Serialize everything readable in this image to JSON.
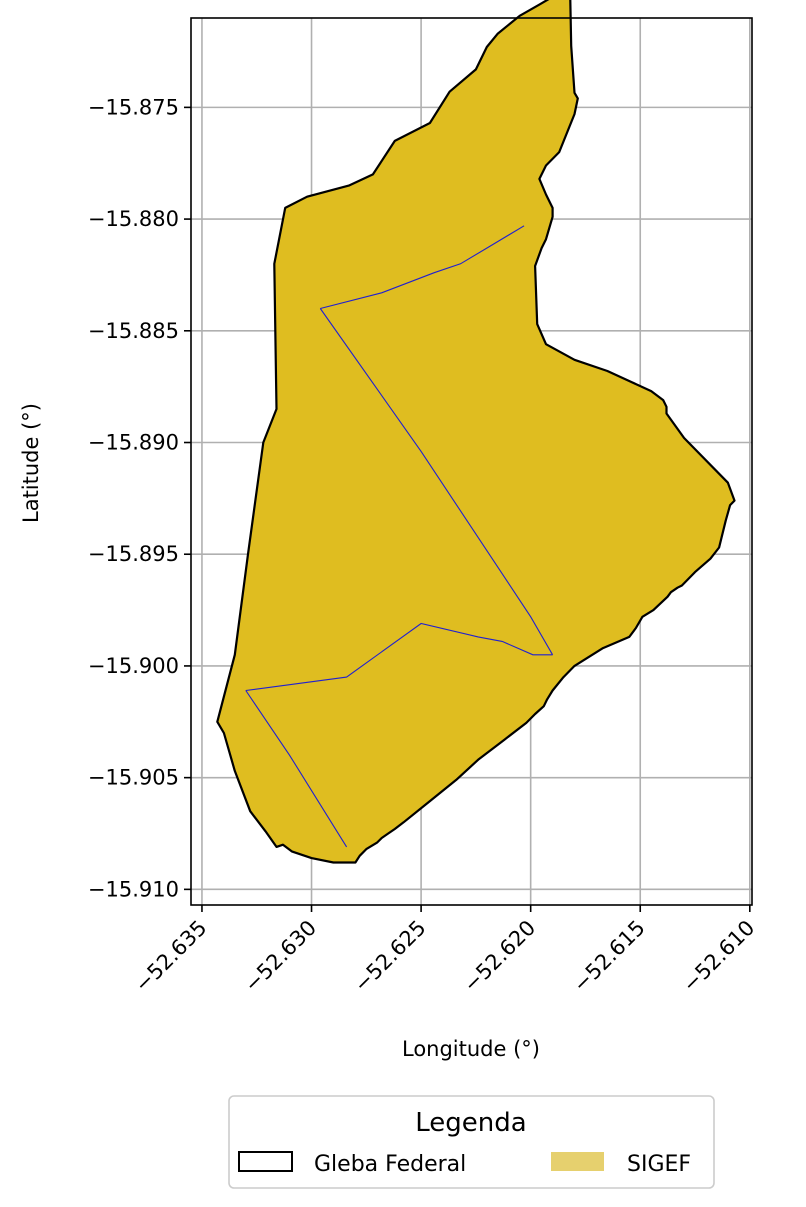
{
  "chart_data": {
    "type": "map",
    "xlabel": "Longitude (°)",
    "ylabel": "Latitude (°)",
    "x_ticks": [
      -52.635,
      -52.63,
      -52.625,
      -52.62,
      -52.615,
      -52.61
    ],
    "x_tick_labels": [
      "−52.635",
      "−52.630",
      "−52.625",
      "−52.620",
      "−52.615",
      "−52.610"
    ],
    "y_ticks": [
      -15.875,
      -15.88,
      -15.885,
      -15.89,
      -15.895,
      -15.9,
      -15.905,
      -15.91
    ],
    "y_tick_labels": [
      "−15.875",
      "−15.880",
      "−15.885",
      "−15.890",
      "−15.895",
      "−15.900",
      "−15.905",
      "−15.910"
    ],
    "xlim": [
      -52.6355,
      -52.6099
    ],
    "ylim": [
      -15.9107,
      -15.871
    ],
    "grid": true,
    "legend": {
      "title": "Legenda",
      "placement": "bottom-center, below axes",
      "entries": [
        {
          "label": "Gleba Federal",
          "style": "outline",
          "edge_color": "#000000"
        },
        {
          "label": "SIGEF",
          "style": "filled",
          "fill_color": "#e6d06e"
        }
      ]
    },
    "colors": {
      "fill": "#dfbd20",
      "outline": "#000000",
      "parcel_lines": "#2020d0",
      "grid": "#b0b0b0"
    },
    "boundary_polygon": [
      [
        -52.61815,
        -15.87225
      ],
      [
        -52.618,
        -15.87435
      ],
      [
        -52.61785,
        -15.8746
      ],
      [
        -52.618,
        -15.8753
      ],
      [
        -52.6187,
        -15.877
      ],
      [
        -52.6193,
        -15.8776
      ],
      [
        -52.6196,
        -15.8782
      ],
      [
        -52.6193,
        -15.8789
      ],
      [
        -52.619,
        -15.8795
      ],
      [
        -52.619,
        -15.8799
      ],
      [
        -52.6193,
        -15.8809
      ],
      [
        -52.6195,
        -15.8813
      ],
      [
        -52.6198,
        -15.8821
      ],
      [
        -52.6197,
        -15.8847
      ],
      [
        -52.6193,
        -15.8856
      ],
      [
        -52.618,
        -15.8863
      ],
      [
        -52.6165,
        -15.8868
      ],
      [
        -52.6145,
        -15.8877
      ],
      [
        -52.61395,
        -15.8881
      ],
      [
        -52.6138,
        -15.8884
      ],
      [
        -52.6138,
        -15.8887
      ],
      [
        -52.613,
        -15.8898
      ],
      [
        -52.611,
        -15.8918
      ],
      [
        -52.6107,
        -15.8926
      ],
      [
        -52.6109,
        -15.8928
      ],
      [
        -52.6111,
        -15.8935
      ],
      [
        -52.6114,
        -15.8947
      ],
      [
        -52.6118,
        -15.8952
      ],
      [
        -52.6125,
        -15.8958
      ],
      [
        -52.6131,
        -15.8964
      ],
      [
        -52.6133,
        -15.8965
      ],
      [
        -52.6136,
        -15.8967
      ],
      [
        -52.61375,
        -15.8969
      ],
      [
        -52.6144,
        -15.8975
      ],
      [
        -52.6149,
        -15.8978
      ],
      [
        -52.6152,
        -15.8983
      ],
      [
        -52.6155,
        -15.8987
      ],
      [
        -52.6167,
        -15.8992
      ],
      [
        -52.618,
        -15.9
      ],
      [
        -52.6185,
        -15.9005
      ],
      [
        -52.619,
        -15.9011
      ],
      [
        -52.61925,
        -15.9015
      ],
      [
        -52.6194,
        -15.9018
      ],
      [
        -52.6198,
        -15.90215
      ],
      [
        -52.6202,
        -15.90255
      ],
      [
        -52.6212,
        -15.9033
      ],
      [
        -52.6224,
        -15.9042
      ],
      [
        -52.6234,
        -15.9051
      ],
      [
        -52.6246,
        -15.90605
      ],
      [
        -52.6258,
        -15.907
      ],
      [
        -52.6262,
        -15.9073
      ],
      [
        -52.6265,
        -15.9075
      ],
      [
        -52.6268,
        -15.9077
      ],
      [
        -52.627,
        -15.9079
      ],
      [
        -52.6275,
        -15.9082
      ],
      [
        -52.6278,
        -15.9085
      ],
      [
        -52.628,
        -15.9088
      ],
      [
        -52.6283,
        -15.9088
      ],
      [
        -52.629,
        -15.9088
      ],
      [
        -52.63,
        -15.9086
      ],
      [
        -52.6309,
        -15.9083
      ],
      [
        -52.6313,
        -15.908
      ],
      [
        -52.6316,
        -15.9081
      ],
      [
        -52.6321,
        -15.9074
      ],
      [
        -52.6328,
        -15.9065
      ],
      [
        -52.6335,
        -15.9047
      ],
      [
        -52.634,
        -15.903
      ],
      [
        -52.6343,
        -15.9025
      ],
      [
        -52.6335,
        -15.8995
      ],
      [
        -52.6329,
        -15.895
      ],
      [
        -52.6322,
        -15.89
      ],
      [
        -52.6316,
        -15.8885
      ],
      [
        -52.6317,
        -15.882
      ],
      [
        -52.6312,
        -15.8795
      ],
      [
        -52.6302,
        -15.879
      ],
      [
        -52.6283,
        -15.8785
      ],
      [
        -52.6272,
        -15.878
      ],
      [
        -52.6262,
        -15.8765
      ],
      [
        -52.6246,
        -15.8757
      ],
      [
        -52.6237,
        -15.8743
      ],
      [
        -52.6225,
        -15.8733
      ],
      [
        -52.622,
        -15.8723
      ],
      [
        -52.6215,
        -15.8717
      ],
      [
        -52.6205,
        -15.8709
      ],
      [
        -52.6196,
        -15.8704
      ],
      [
        -52.619,
        -15.87005
      ],
      [
        -52.6185,
        -15.8698
      ],
      [
        -52.6182,
        -15.86975
      ],
      [
        -52.61815,
        -15.87225
      ]
    ],
    "parcel_lines": [
      [
        [
          -52.6296,
          -15.884
        ],
        [
          -52.6268,
          -15.8833
        ],
        [
          -52.6244,
          -15.8824
        ],
        [
          -52.6232,
          -15.882
        ],
        [
          -52.622,
          -15.8813
        ],
        [
          -52.6203,
          -15.8803
        ]
      ],
      [
        [
          -52.6296,
          -15.884
        ],
        [
          -52.625,
          -15.8904
        ],
        [
          -52.62,
          -15.8978
        ],
        [
          -52.619,
          -15.8995
        ]
      ],
      [
        [
          -52.633,
          -15.9011
        ],
        [
          -52.6284,
          -15.9005
        ],
        [
          -52.625,
          -15.8981
        ],
        [
          -52.6224,
          -15.8987
        ],
        [
          -52.6213,
          -15.8989
        ],
        [
          -52.6199,
          -15.8995
        ],
        [
          -52.619,
          -15.8995
        ]
      ],
      [
        [
          -52.633,
          -15.9011
        ],
        [
          -52.631,
          -15.904
        ],
        [
          -52.6284,
          -15.9081
        ]
      ]
    ]
  }
}
